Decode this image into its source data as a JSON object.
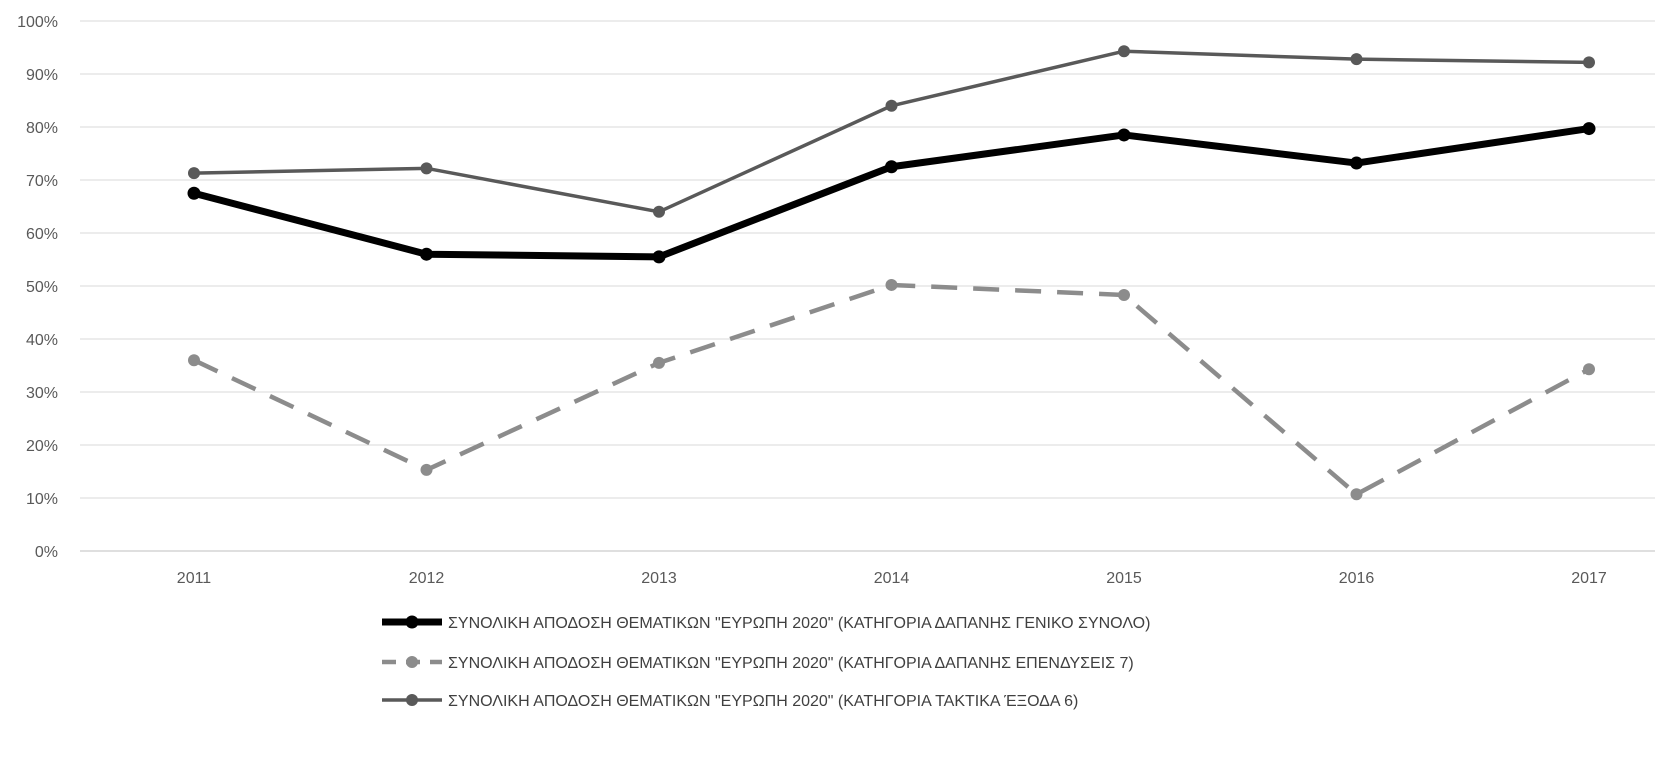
{
  "chart_data": {
    "type": "line",
    "x": [
      "2011",
      "2012",
      "2013",
      "2014",
      "2015",
      "2016",
      "2017"
    ],
    "ylim": [
      0,
      100
    ],
    "y_ticks": [
      "0%",
      "10%",
      "20%",
      "30%",
      "40%",
      "50%",
      "60%",
      "70%",
      "80%",
      "90%",
      "100%"
    ],
    "grid": true,
    "legend_position": "bottom",
    "series": [
      {
        "name": "ΣΥΝΟΛΙΚΗ ΑΠΟΔΟΣΗ ΘΕΜΑΤΙΚΩΝ \"ΕΥΡΩΠΗ 2020\" (ΚΑΤΗΓΟΡΙΑ ΔΑΠΑΝΗΣ ΓΕΝΙΚΟ ΣΥΝΟΛΟ)",
        "values": [
          67.5,
          56,
          55.5,
          72.5,
          78.5,
          73.2,
          79.7
        ],
        "color": "#000000",
        "style": "solid-bold"
      },
      {
        "name": "ΣΥΝΟΛΙΚΗ ΑΠΟΔΟΣΗ ΘΕΜΑΤΙΚΩΝ \"ΕΥΡΩΠΗ 2020\" (ΚΑΤΗΓΟΡΙΑ ΔΑΠΑΝΗΣ ΕΠΕΝΔΥΣΕΙΣ 7)",
        "values": [
          36,
          15.3,
          35.5,
          50.2,
          48.3,
          10.7,
          34.3
        ],
        "color": "#8c8c8c",
        "style": "dashed"
      },
      {
        "name": "ΣΥΝΟΛΙΚΗ ΑΠΟΔΟΣΗ ΘΕΜΑΤΙΚΩΝ \"ΕΥΡΩΠΗ 2020\" (ΚΑΤΗΓΟΡΙΑ ΤΑΚΤΙΚΑ ΈΞΟΔΑ 6)",
        "values": [
          71.3,
          72.2,
          64,
          84,
          94.3,
          92.8,
          92.2
        ],
        "color": "#595959",
        "style": "solid"
      }
    ]
  }
}
